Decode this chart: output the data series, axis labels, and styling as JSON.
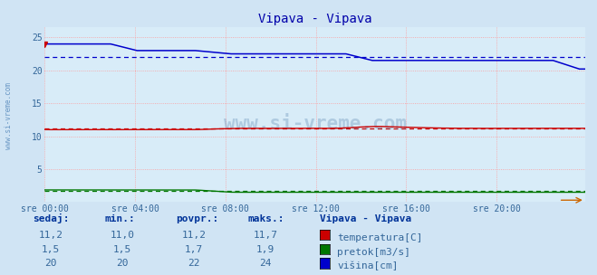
{
  "title": "Vipava - Vipava",
  "bg_color": "#d0e4f4",
  "plot_bg_color": "#d8ecf8",
  "grid_color": "#ff9999",
  "x_labels": [
    "sre 00:00",
    "sre 04:00",
    "sre 08:00",
    "sre 12:00",
    "sre 16:00",
    "sre 20:00"
  ],
  "y_ticks": [
    5,
    10,
    15,
    20,
    25
  ],
  "y_min": 0,
  "y_max": 26.5,
  "temperatura_color": "#cc0000",
  "pretok_color": "#007700",
  "visina_color": "#0000cc",
  "temperatura_avg": 11.2,
  "pretok_avg": 1.7,
  "visina_avg": 22,
  "watermark": "www.si-vreme.com",
  "left_label": "www.si-vreme.com",
  "legend_title": "Vipava - Vipava",
  "legend_items": [
    "temperatura[C]",
    "pretok[m3/s]",
    "višina[cm]"
  ],
  "table_headers": [
    "sedaj:",
    "min.:",
    "povpr.:",
    "maks.:"
  ],
  "table_values": [
    [
      "11,2",
      "11,0",
      "11,2",
      "11,7"
    ],
    [
      "1,5",
      "1,5",
      "1,7",
      "1,9"
    ],
    [
      "20",
      "20",
      "22",
      "24"
    ]
  ]
}
